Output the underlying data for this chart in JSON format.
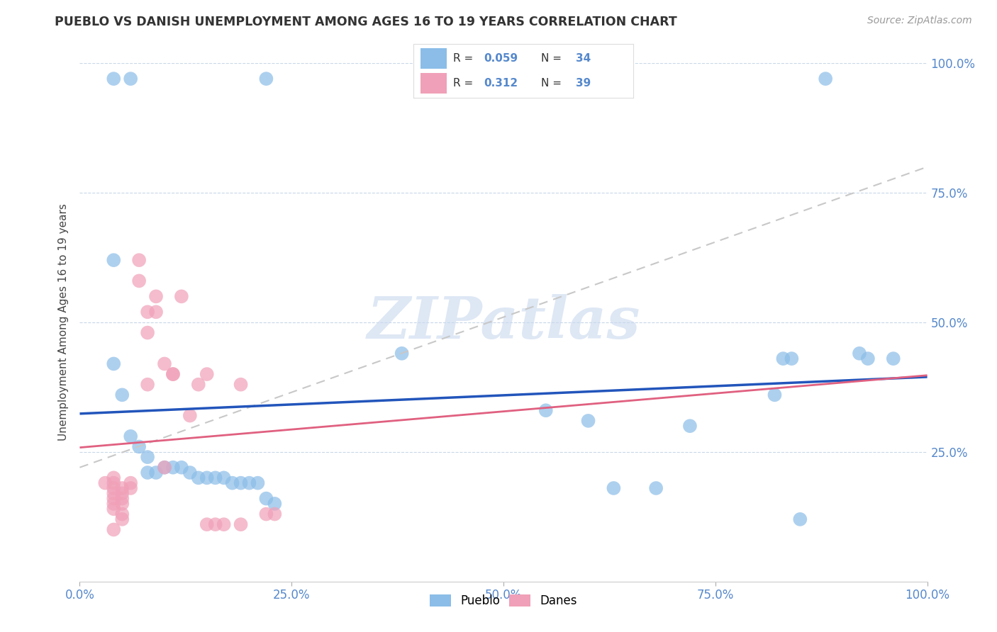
{
  "title": "PUEBLO VS DANISH UNEMPLOYMENT AMONG AGES 16 TO 19 YEARS CORRELATION CHART",
  "source": "Source: ZipAtlas.com",
  "ylabel": "Unemployment Among Ages 16 to 19 years",
  "xlim": [
    0,
    1.0
  ],
  "ylim": [
    0,
    1.0
  ],
  "pueblo_color": "#8bbde8",
  "danes_color": "#f0a0b8",
  "pueblo_line_color": "#2255bb",
  "danes_line_color": "#e06080",
  "ref_line_color": "#c8c8c8",
  "background_color": "#ffffff",
  "watermark": "ZIPatlas",
  "pueblo_points": [
    [
      0.04,
      0.97
    ],
    [
      0.06,
      0.97
    ],
    [
      0.22,
      0.97
    ],
    [
      0.88,
      0.97
    ],
    [
      0.04,
      0.62
    ],
    [
      0.04,
      0.42
    ],
    [
      0.05,
      0.36
    ],
    [
      0.06,
      0.28
    ],
    [
      0.07,
      0.26
    ],
    [
      0.08,
      0.24
    ],
    [
      0.08,
      0.21
    ],
    [
      0.09,
      0.21
    ],
    [
      0.1,
      0.22
    ],
    [
      0.11,
      0.22
    ],
    [
      0.12,
      0.22
    ],
    [
      0.13,
      0.21
    ],
    [
      0.14,
      0.2
    ],
    [
      0.15,
      0.2
    ],
    [
      0.16,
      0.2
    ],
    [
      0.17,
      0.2
    ],
    [
      0.18,
      0.19
    ],
    [
      0.19,
      0.19
    ],
    [
      0.2,
      0.19
    ],
    [
      0.21,
      0.19
    ],
    [
      0.22,
      0.16
    ],
    [
      0.23,
      0.15
    ],
    [
      0.38,
      0.44
    ],
    [
      0.55,
      0.33
    ],
    [
      0.6,
      0.31
    ],
    [
      0.63,
      0.18
    ],
    [
      0.68,
      0.18
    ],
    [
      0.72,
      0.3
    ],
    [
      0.82,
      0.36
    ],
    [
      0.83,
      0.43
    ],
    [
      0.84,
      0.43
    ],
    [
      0.85,
      0.12
    ],
    [
      0.92,
      0.44
    ],
    [
      0.93,
      0.43
    ],
    [
      0.96,
      0.43
    ]
  ],
  "danes_points": [
    [
      0.03,
      0.19
    ],
    [
      0.04,
      0.2
    ],
    [
      0.04,
      0.19
    ],
    [
      0.04,
      0.18
    ],
    [
      0.04,
      0.17
    ],
    [
      0.04,
      0.16
    ],
    [
      0.04,
      0.15
    ],
    [
      0.04,
      0.14
    ],
    [
      0.04,
      0.1
    ],
    [
      0.05,
      0.18
    ],
    [
      0.05,
      0.17
    ],
    [
      0.05,
      0.16
    ],
    [
      0.05,
      0.15
    ],
    [
      0.05,
      0.13
    ],
    [
      0.05,
      0.12
    ],
    [
      0.06,
      0.19
    ],
    [
      0.06,
      0.18
    ],
    [
      0.07,
      0.62
    ],
    [
      0.07,
      0.58
    ],
    [
      0.08,
      0.52
    ],
    [
      0.08,
      0.48
    ],
    [
      0.09,
      0.55
    ],
    [
      0.09,
      0.52
    ],
    [
      0.1,
      0.22
    ],
    [
      0.1,
      0.42
    ],
    [
      0.11,
      0.4
    ],
    [
      0.12,
      0.55
    ],
    [
      0.13,
      0.32
    ],
    [
      0.14,
      0.38
    ],
    [
      0.15,
      0.11
    ],
    [
      0.16,
      0.11
    ],
    [
      0.17,
      0.11
    ],
    [
      0.19,
      0.11
    ],
    [
      0.22,
      0.13
    ],
    [
      0.23,
      0.13
    ],
    [
      0.08,
      0.38
    ],
    [
      0.11,
      0.4
    ],
    [
      0.15,
      0.4
    ],
    [
      0.19,
      0.38
    ]
  ]
}
